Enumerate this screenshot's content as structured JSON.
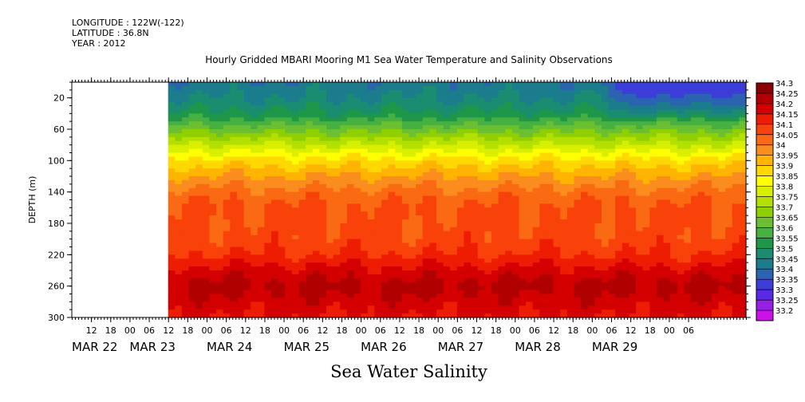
{
  "header": {
    "longitude": "LONGITUDE : 122W(-122)",
    "latitude": "LATITUDE : 36.8N",
    "year": "YEAR : 2012"
  },
  "chart_data": {
    "type": "heatmap",
    "title": "Hourly Gridded MBARI Mooring M1 Sea Water Temperature and Salinity Observations",
    "xlabel": "Sea Water Salinity",
    "ylabel": "DEPTH (m)",
    "x_range_hours": [
      -12,
      198
    ],
    "x_reference": "MAR 22 00",
    "data_start_hour": 18,
    "ylim": [
      300,
      0
    ],
    "yticks": [
      20,
      60,
      100,
      140,
      180,
      220,
      260,
      300
    ],
    "hour_ticks": [
      {
        "h": -6,
        "label": "12"
      },
      {
        "h": 0,
        "label": "18"
      },
      {
        "h": 6,
        "label": "00"
      },
      {
        "h": 12,
        "label": "06"
      },
      {
        "h": 18,
        "label": "12"
      },
      {
        "h": 24,
        "label": "18"
      },
      {
        "h": 30,
        "label": "00"
      },
      {
        "h": 36,
        "label": "06"
      },
      {
        "h": 42,
        "label": "12"
      },
      {
        "h": 48,
        "label": "18"
      },
      {
        "h": 54,
        "label": "00"
      },
      {
        "h": 60,
        "label": "06"
      },
      {
        "h": 66,
        "label": "12"
      },
      {
        "h": 72,
        "label": "18"
      },
      {
        "h": 78,
        "label": "00"
      },
      {
        "h": 84,
        "label": "06"
      },
      {
        "h": 90,
        "label": "12"
      },
      {
        "h": 96,
        "label": "18"
      },
      {
        "h": 102,
        "label": "00"
      },
      {
        "h": 108,
        "label": "06"
      },
      {
        "h": 114,
        "label": "12"
      },
      {
        "h": 120,
        "label": "18"
      },
      {
        "h": 126,
        "label": "00"
      },
      {
        "h": 132,
        "label": "06"
      },
      {
        "h": 138,
        "label": "12"
      },
      {
        "h": 144,
        "label": "18"
      },
      {
        "h": 150,
        "label": "00"
      },
      {
        "h": 156,
        "label": "06"
      },
      {
        "h": 162,
        "label": "12"
      },
      {
        "h": 168,
        "label": "18"
      },
      {
        "h": 174,
        "label": "00"
      },
      {
        "h": 180,
        "label": "06"
      }
    ],
    "day_labels": [
      {
        "h": -12,
        "label": "MAR 22"
      },
      {
        "h": 6,
        "label": "MAR 23"
      },
      {
        "h": 30,
        "label": "MAR 24"
      },
      {
        "h": 54,
        "label": "MAR 25"
      },
      {
        "h": 78,
        "label": "MAR 26"
      },
      {
        "h": 102,
        "label": "MAR 27"
      },
      {
        "h": 126,
        "label": "MAR 28"
      },
      {
        "h": 150,
        "label": "MAR 29"
      }
    ],
    "depth_profile": [
      {
        "depth": 5,
        "salinity": 33.47
      },
      {
        "depth": 20,
        "salinity": 33.5
      },
      {
        "depth": 40,
        "salinity": 33.56
      },
      {
        "depth": 60,
        "salinity": 33.68
      },
      {
        "depth": 80,
        "salinity": 33.8
      },
      {
        "depth": 100,
        "salinity": 33.92
      },
      {
        "depth": 120,
        "salinity": 34.0
      },
      {
        "depth": 140,
        "salinity": 34.07
      },
      {
        "depth": 160,
        "salinity": 34.11
      },
      {
        "depth": 180,
        "salinity": 34.11
      },
      {
        "depth": 200,
        "salinity": 34.12
      },
      {
        "depth": 220,
        "salinity": 34.15
      },
      {
        "depth": 240,
        "salinity": 34.22
      },
      {
        "depth": 260,
        "salinity": 34.27
      },
      {
        "depth": 280,
        "salinity": 34.23
      },
      {
        "depth": 300,
        "salinity": 34.2
      }
    ],
    "surface_freshening": [
      {
        "h_start": 153,
        "h_end": 198,
        "salinity": 33.35
      }
    ],
    "colorbar": {
      "levels": [
        "34.3",
        "34.25",
        "34.2",
        "34.15",
        "34.1",
        "34.05",
        "34",
        "33.95",
        "33.9",
        "33.85",
        "33.8",
        "33.75",
        "33.7",
        "33.65",
        "33.6",
        "33.55",
        "33.5",
        "33.45",
        "33.4",
        "33.35",
        "33.3",
        "33.25",
        "33.2"
      ],
      "colors": [
        "#8b0000",
        "#b00000",
        "#d40000",
        "#ee1c00",
        "#f8420a",
        "#fa6a12",
        "#fb8c1e",
        "#ffb400",
        "#ffd800",
        "#ffff00",
        "#d8f000",
        "#b4e000",
        "#90d000",
        "#6ac030",
        "#46b040",
        "#1e9848",
        "#1a8c70",
        "#1b7c8c",
        "#2a64b0",
        "#3c3cd8",
        "#5a28e8",
        "#9620e6",
        "#cc10e8"
      ]
    }
  }
}
